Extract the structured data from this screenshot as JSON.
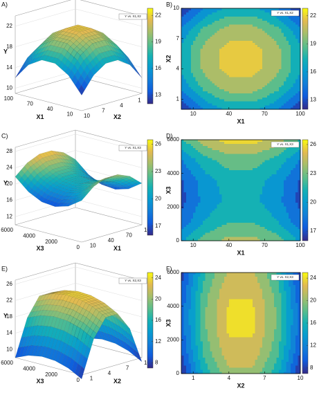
{
  "chart_data": [
    {
      "type": "surface-contour",
      "panels": [
        "A)",
        "B)"
      ],
      "legend": "Y vs. X1,X2",
      "x_label": "X1",
      "y_label": "X2",
      "z_label": "Y",
      "x": [
        0,
        20,
        40,
        60,
        80,
        100
      ],
      "y": [
        0,
        2,
        4,
        6,
        8,
        10
      ],
      "z": [
        [
          12,
          15.2,
          16.8,
          16.8,
          15.2,
          12
        ],
        [
          15.2,
          18.4,
          20,
          20,
          18.4,
          15.2
        ],
        [
          16.8,
          20,
          21.6,
          21.6,
          20,
          16.8
        ],
        [
          16.8,
          20,
          21.6,
          21.6,
          20,
          16.8
        ],
        [
          15.2,
          18.4,
          20,
          20,
          18.4,
          15.2
        ],
        [
          12,
          15.2,
          16.8,
          16.8,
          15.2,
          12
        ]
      ],
      "xlim": [
        0,
        100
      ],
      "xticks": [
        10,
        40,
        70,
        100
      ],
      "ylim": [
        0,
        10
      ],
      "yticks": [
        1,
        4,
        7,
        10
      ],
      "zlim": [
        9,
        24
      ],
      "zticks": [
        10,
        14,
        18,
        22
      ],
      "clim": [
        12,
        22.8
      ],
      "cticks": [
        13,
        16,
        19,
        22
      ]
    },
    {
      "type": "surface-contour",
      "panels": [
        "C)",
        "D)"
      ],
      "legend": "Y vs. X1,X3",
      "x_label": "X1",
      "y_label": "X3",
      "z_label": "Y",
      "x": [
        0,
        20,
        40,
        60,
        80,
        100
      ],
      "y": [
        0,
        1200,
        2400,
        3600,
        4800,
        6000
      ],
      "z": [
        [
          20.2,
          22.76,
          24.04,
          24.04,
          22.76,
          20.2
        ],
        [
          17.96,
          20.52,
          21.8,
          21.8,
          20.52,
          17.96
        ],
        [
          17,
          19.56,
          20.84,
          20.84,
          19.56,
          17
        ],
        [
          17.32,
          19.88,
          21.16,
          21.16,
          19.88,
          17.32
        ],
        [
          18.92,
          21.48,
          22.76,
          22.76,
          21.48,
          18.92
        ],
        [
          21.8,
          24.36,
          25.64,
          25.64,
          24.36,
          21.8
        ]
      ],
      "xlim": [
        0,
        100
      ],
      "xticks": [
        10,
        40,
        70,
        100
      ],
      "ylim": [
        0,
        6000
      ],
      "yticks": [
        0,
        2000,
        4000,
        6000
      ],
      "zlim": [
        10,
        29
      ],
      "zticks": [
        12,
        16,
        20,
        24,
        28
      ],
      "clim": [
        16,
        26.5
      ],
      "cticks": [
        17,
        20,
        23,
        26
      ]
    },
    {
      "type": "surface-contour",
      "panels": [
        "E)",
        "F)"
      ],
      "legend": "Y vs. X2,X3",
      "x_label": "X2",
      "y_label": "X3",
      "z_label": "Y",
      "x": [
        0,
        2,
        4,
        6,
        8,
        10
      ],
      "y": [
        0,
        1200,
        2400,
        3600,
        4800,
        6000
      ],
      "z": [
        [
          7,
          15.96,
          20.44,
          20.44,
          15.96,
          7
        ],
        [
          8.79,
          17.75,
          22.23,
          22.23,
          17.75,
          8.79
        ],
        [
          9.78,
          18.74,
          23.22,
          23.22,
          18.74,
          9.78
        ],
        [
          9.98,
          18.94,
          23.42,
          23.42,
          18.94,
          9.98
        ],
        [
          9.38,
          18.34,
          22.82,
          22.82,
          18.34,
          9.38
        ],
        [
          7.99,
          16.95,
          21.43,
          21.43,
          16.95,
          7.99
        ]
      ],
      "xlim": [
        0,
        10
      ],
      "xticks": [
        1,
        4,
        7,
        10
      ],
      "ylim": [
        0,
        6000
      ],
      "yticks": [
        0,
        2000,
        4000,
        6000
      ],
      "zlim": [
        8,
        27
      ],
      "zticks": [
        10,
        14,
        18,
        22,
        26
      ],
      "clim": [
        7,
        25
      ],
      "cticks": [
        8,
        12,
        16,
        20,
        24
      ]
    }
  ]
}
